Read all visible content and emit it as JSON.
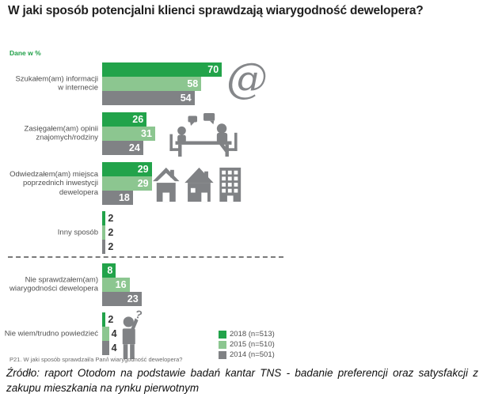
{
  "title": "W jaki sposób potencjalni klienci sprawdzają wiarygodność dewelopera?",
  "units_label": "Dane w %",
  "footnote": "P21. W jaki sposób sprawdzał/a Pan/i wiarygodność dewelopera?",
  "source": "Źródło: raport Otodom na podstawie badań kantar TNS - badanie preferencji oraz satysfakcji z zakupu mieszkania na rynku pierwotnym",
  "colors": {
    "green_dark": "#22A34A",
    "green_light": "#8CC690",
    "gray": "#808285",
    "accent_text": "#21A049"
  },
  "icons": {
    "at_glyph": "@"
  },
  "legend": {
    "items": [
      {
        "label": "2018 (n=513)",
        "color": "#22A34A"
      },
      {
        "label": "2015 (n=510)",
        "color": "#8CC690"
      },
      {
        "label": "2014 (n=501)",
        "color": "#808285"
      }
    ]
  },
  "chart_data": {
    "type": "bar",
    "orientation": "horizontal",
    "title": "W jaki sposób potencjalni klienci sprawdzają wiarygodność dewelopera?",
    "units": "percent",
    "xlim": [
      0,
      100
    ],
    "grid": false,
    "legend_position": "bottom-right",
    "categories": [
      "Szukałem(am) informacji\nw internecie",
      "Zasięgałem(am) opinii\nznajomych/rodziny",
      "Odwiedzałem(am) miejsca\npoprzednich inwestycji\ndewelopera",
      "Inny sposób",
      "Nie sprawdzałem(am)\nwiarygodności dewelopera",
      "Nie wiem/trudno powiedzieć"
    ],
    "series": [
      {
        "name": "2018 (n=513)",
        "color": "#22A34A",
        "values": [
          70,
          26,
          29,
          2,
          8,
          2
        ]
      },
      {
        "name": "2015 (n=510)",
        "color": "#8CC690",
        "values": [
          58,
          31,
          29,
          2,
          16,
          4
        ]
      },
      {
        "name": "2014 (n=501)",
        "color": "#808285",
        "values": [
          54,
          24,
          18,
          2,
          23,
          4
        ]
      }
    ],
    "category_icons": [
      "at-sign",
      "people-talking-at-table",
      "houses-and-building",
      null,
      null,
      "confused-person"
    ],
    "separator_after_category_index": 3
  }
}
